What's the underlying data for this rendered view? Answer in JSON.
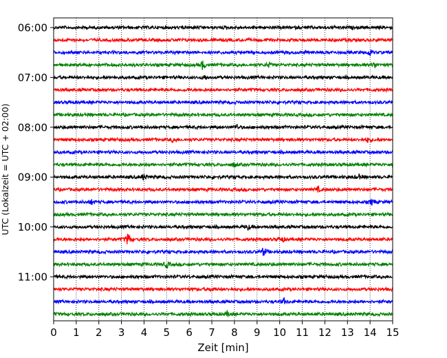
{
  "chart_data": {
    "type": "line",
    "xlabel": "Zeit  [min]",
    "ylabel": "UTC (Lokalzeit = UTC + 02:00)",
    "xlim": [
      0,
      15
    ],
    "x_ticks": [
      0,
      1,
      2,
      3,
      4,
      5,
      6,
      7,
      8,
      9,
      10,
      11,
      12,
      13,
      14,
      15
    ],
    "x_tick_labels": [
      "0",
      "1",
      "2",
      "3",
      "4",
      "5",
      "6",
      "7",
      "8",
      "9",
      "10",
      "11",
      "12",
      "13",
      "14",
      "15"
    ],
    "x_grid": "dotted",
    "y_tick_labels": [
      "06:00",
      "07:00",
      "08:00",
      "09:00",
      "10:00",
      "11:00"
    ],
    "y_tick_rows": [
      0,
      4,
      8,
      12,
      16,
      20
    ],
    "trace_minutes_per_row": 15,
    "trace_colors": [
      "#000000",
      "#ff0000",
      "#0000ff",
      "#008000"
    ],
    "rows": [
      {
        "start": "06:00",
        "color": "#000000",
        "events": []
      },
      {
        "start": "06:15",
        "color": "#ff0000",
        "events": []
      },
      {
        "start": "06:30",
        "color": "#0000ff",
        "events": [
          {
            "t": 14.0,
            "a": 0.5
          }
        ]
      },
      {
        "start": "06:45",
        "color": "#008000",
        "events": [
          {
            "t": 6.6,
            "a": 0.8
          },
          {
            "t": 9.5,
            "a": 0.4
          },
          {
            "t": 14.2,
            "a": 0.5
          }
        ]
      },
      {
        "start": "07:00",
        "color": "#000000",
        "events": [
          {
            "t": 6.7,
            "a": 0.4
          }
        ]
      },
      {
        "start": "07:15",
        "color": "#ff0000",
        "events": []
      },
      {
        "start": "07:30",
        "color": "#0000ff",
        "events": []
      },
      {
        "start": "07:45",
        "color": "#008000",
        "events": []
      },
      {
        "start": "08:00",
        "color": "#000000",
        "events": [
          {
            "t": 8.1,
            "a": 0.5
          }
        ]
      },
      {
        "start": "08:15",
        "color": "#ff0000",
        "events": [
          {
            "t": 5.3,
            "a": 0.4
          },
          {
            "t": 13.9,
            "a": 0.4
          }
        ]
      },
      {
        "start": "08:30",
        "color": "#0000ff",
        "events": []
      },
      {
        "start": "08:45",
        "color": "#008000",
        "events": [
          {
            "t": 8.0,
            "a": 0.4
          }
        ]
      },
      {
        "start": "09:00",
        "color": "#000000",
        "events": [
          {
            "t": 4.0,
            "a": 0.6
          },
          {
            "t": 13.5,
            "a": 0.4
          }
        ]
      },
      {
        "start": "09:15",
        "color": "#ff0000",
        "events": [
          {
            "t": 11.7,
            "a": 0.4
          }
        ]
      },
      {
        "start": "09:30",
        "color": "#0000ff",
        "events": [
          {
            "t": 1.7,
            "a": 0.4
          },
          {
            "t": 14.1,
            "a": 0.5
          }
        ]
      },
      {
        "start": "09:45",
        "color": "#008000",
        "events": []
      },
      {
        "start": "10:00",
        "color": "#000000",
        "events": [
          {
            "t": 8.6,
            "a": 0.4
          }
        ]
      },
      {
        "start": "10:15",
        "color": "#ff0000",
        "events": [
          {
            "t": 3.3,
            "a": 1.2
          },
          {
            "t": 10.1,
            "a": 0.5
          }
        ]
      },
      {
        "start": "10:30",
        "color": "#0000ff",
        "events": [
          {
            "t": 9.3,
            "a": 0.8
          }
        ]
      },
      {
        "start": "10:45",
        "color": "#008000",
        "events": [
          {
            "t": 5.0,
            "a": 0.6
          }
        ]
      },
      {
        "start": "11:00",
        "color": "#000000",
        "events": []
      },
      {
        "start": "11:15",
        "color": "#ff0000",
        "events": [
          {
            "t": 7.0,
            "a": 0.4
          }
        ]
      },
      {
        "start": "11:30",
        "color": "#0000ff",
        "events": [
          {
            "t": 10.2,
            "a": 0.4
          }
        ]
      },
      {
        "start": "11:45",
        "color": "#008000",
        "events": [
          {
            "t": 7.7,
            "a": 0.4
          }
        ]
      }
    ]
  }
}
